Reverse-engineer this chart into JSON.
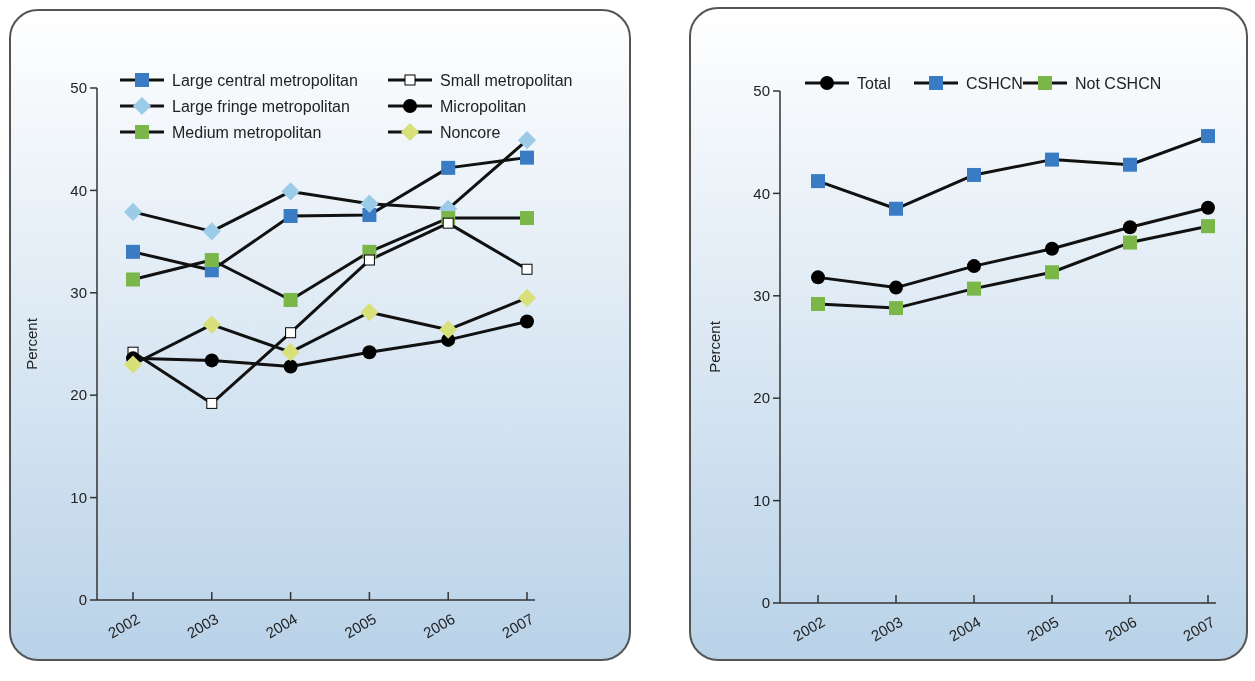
{
  "chart_data": [
    {
      "type": "line",
      "ylabel": "Percent",
      "categories": [
        "2002",
        "2003",
        "2004",
        "2005",
        "2006",
        "2007"
      ],
      "ylim": [
        0,
        50
      ],
      "yticks": [
        0,
        10,
        20,
        30,
        40,
        50
      ],
      "legend": "top",
      "series": [
        {
          "name": "Large central metropolitan",
          "color": "#3a7cc4",
          "marker": "square",
          "values": [
            34.0,
            32.2,
            37.5,
            37.6,
            42.2,
            43.2
          ]
        },
        {
          "name": "Large fringe metropolitan",
          "color": "#9ccbe8",
          "marker": "diamond",
          "values": [
            37.9,
            36.0,
            39.9,
            38.7,
            38.2,
            44.9
          ]
        },
        {
          "name": "Medium metropolitan",
          "color": "#7ab648",
          "marker": "square",
          "values": [
            31.3,
            33.2,
            29.3,
            34.0,
            37.3,
            37.3
          ]
        },
        {
          "name": "Small metropolitan",
          "color": "#ffffff",
          "marker": "square",
          "values": [
            24.2,
            19.2,
            26.1,
            33.2,
            36.8,
            32.3
          ]
        },
        {
          "name": "Micropolitan",
          "color": "#000000",
          "marker": "circle",
          "values": [
            23.6,
            23.4,
            22.8,
            24.2,
            25.4,
            27.2
          ]
        },
        {
          "name": "Noncore",
          "color": "#d8e07a",
          "marker": "diamond",
          "values": [
            23.0,
            26.9,
            24.2,
            28.1,
            26.4,
            29.5
          ]
        }
      ]
    },
    {
      "type": "line",
      "ylabel": "Percent",
      "categories": [
        "2002",
        "2003",
        "2004",
        "2005",
        "2006",
        "2007"
      ],
      "ylim": [
        0,
        50
      ],
      "yticks": [
        0,
        10,
        20,
        30,
        40,
        50
      ],
      "legend": "top",
      "series": [
        {
          "name": "Total",
          "color": "#000000",
          "marker": "circle",
          "values": [
            31.8,
            30.8,
            32.9,
            34.6,
            36.7,
            38.6
          ]
        },
        {
          "name": "CSHCN",
          "color": "#3a7cc4",
          "marker": "square",
          "values": [
            41.2,
            38.5,
            41.8,
            43.3,
            42.8,
            45.6
          ]
        },
        {
          "name": "Not CSHCN",
          "color": "#7ab648",
          "marker": "square",
          "values": [
            29.2,
            28.8,
            30.7,
            32.3,
            35.2,
            36.8
          ]
        }
      ]
    }
  ]
}
